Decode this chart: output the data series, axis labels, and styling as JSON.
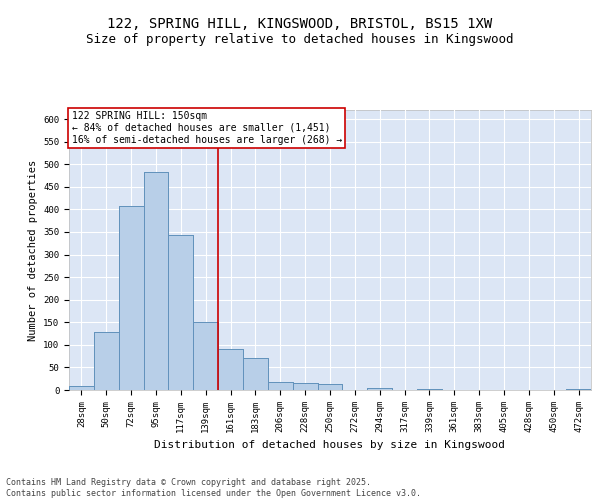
{
  "title_line1": "122, SPRING HILL, KINGSWOOD, BRISTOL, BS15 1XW",
  "title_line2": "Size of property relative to detached houses in Kingswood",
  "xlabel": "Distribution of detached houses by size in Kingswood",
  "ylabel": "Number of detached properties",
  "categories": [
    "28sqm",
    "50sqm",
    "72sqm",
    "95sqm",
    "117sqm",
    "139sqm",
    "161sqm",
    "183sqm",
    "206sqm",
    "228sqm",
    "250sqm",
    "272sqm",
    "294sqm",
    "317sqm",
    "339sqm",
    "361sqm",
    "383sqm",
    "405sqm",
    "428sqm",
    "450sqm",
    "472sqm"
  ],
  "values": [
    8,
    128,
    408,
    482,
    343,
    150,
    90,
    70,
    18,
    15,
    13,
    0,
    5,
    0,
    3,
    0,
    0,
    0,
    0,
    0,
    2
  ],
  "bar_color": "#b8cfe8",
  "bar_edge_color": "#5b8db8",
  "bg_color": "#dce6f5",
  "grid_color": "#ffffff",
  "vline_color": "#cc0000",
  "annotation_text": "122 SPRING HILL: 150sqm\n← 84% of detached houses are smaller (1,451)\n16% of semi-detached houses are larger (268) →",
  "annotation_box_color": "#cc0000",
  "ylim": [
    0,
    620
  ],
  "yticks": [
    0,
    50,
    100,
    150,
    200,
    250,
    300,
    350,
    400,
    450,
    500,
    550,
    600
  ],
  "footer": "Contains HM Land Registry data © Crown copyright and database right 2025.\nContains public sector information licensed under the Open Government Licence v3.0.",
  "title_fontsize": 10,
  "subtitle_fontsize": 9,
  "axis_label_fontsize": 7.5,
  "tick_fontsize": 6.5,
  "annotation_fontsize": 7
}
